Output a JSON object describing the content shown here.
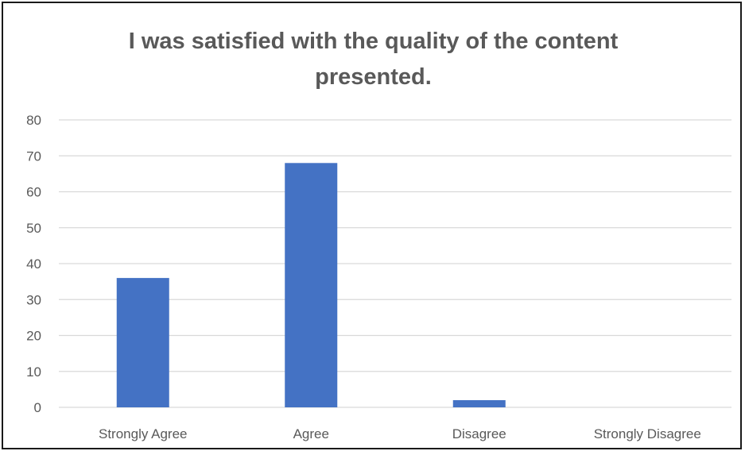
{
  "chart_data": {
    "type": "bar",
    "title": "I was satisfied with the quality of the content presented.",
    "categories": [
      "Strongly Agree",
      "Agree",
      "Disagree",
      "Strongly Disagree"
    ],
    "values": [
      36,
      68,
      2,
      0
    ],
    "ylim": [
      0,
      80
    ],
    "yticks": [
      0,
      10,
      20,
      30,
      40,
      50,
      60,
      70,
      80
    ],
    "grid": true,
    "legend": "none",
    "colors": {
      "bar": "#4472c4",
      "grid": "#d9d9d9",
      "text": "#595959"
    }
  }
}
